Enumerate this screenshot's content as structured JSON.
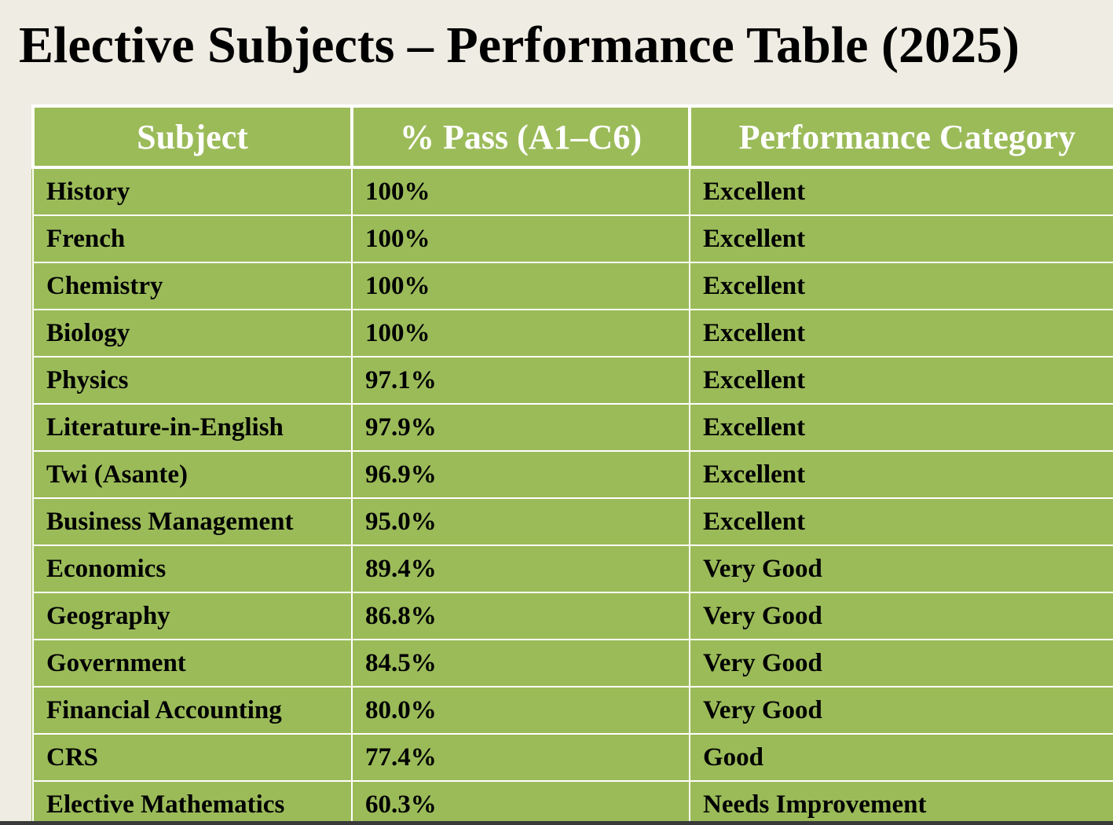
{
  "title": "Elective Subjects – Performance Table (2025)",
  "table": {
    "header": [
      "Subject",
      "% Pass (A1–C6)",
      "Performance Category"
    ],
    "rows": [
      [
        "History",
        "100%",
        "Excellent"
      ],
      [
        "French",
        "100%",
        "Excellent"
      ],
      [
        "Chemistry",
        "100%",
        "Excellent"
      ],
      [
        "Biology",
        "100%",
        "Excellent"
      ],
      [
        "Physics",
        "97.1%",
        "Excellent"
      ],
      [
        "Literature-in-English",
        "97.9%",
        "Excellent"
      ],
      [
        "Twi (Asante)",
        "96.9%",
        "Excellent"
      ],
      [
        "Business Management",
        "95.0%",
        "Excellent"
      ],
      [
        "Economics",
        "89.4%",
        "Very Good"
      ],
      [
        "Geography",
        "86.8%",
        "Very Good"
      ],
      [
        "Government",
        "84.5%",
        "Very Good"
      ],
      [
        "Financial Accounting",
        "80.0%",
        "Very Good"
      ],
      [
        "CRS",
        "77.4%",
        "Good"
      ],
      [
        "Elective Mathematics",
        "60.3%",
        "Needs Improvement"
      ]
    ]
  }
}
